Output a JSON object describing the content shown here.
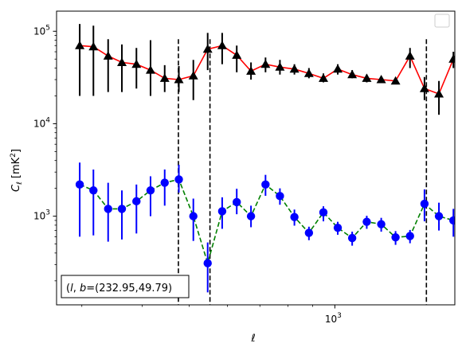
{
  "chart_data": {
    "type": "scatter",
    "title": "",
    "xlabel": "ℓ",
    "ylabel": "C_ℓ [mK²]",
    "xscale": "log",
    "yscale": "log",
    "xlim": [
      266,
      1770
    ],
    "ylim": [
      110,
      165000
    ],
    "grid": false,
    "legend": "top-right (empty)",
    "xticks": [
      {
        "value": 1000,
        "label": "10",
        "exp": "3"
      }
    ],
    "yticks": [
      {
        "value": 1000,
        "label": "10",
        "exp": "3"
      },
      {
        "value": 10000,
        "label": "10",
        "exp": "4"
      },
      {
        "value": 100000,
        "label": "10",
        "exp": "5"
      }
    ],
    "vlines": [
      475,
      552,
      1546
    ],
    "annotation": "(l, b)=(232.95,49.79)",
    "annotation_parts": {
      "l": "l",
      "b": "b",
      "sep": ", ",
      "prefix": "(",
      "close": ")",
      "eq": "=(232.95,49.79)"
    },
    "series": [
      {
        "marker": "triangle",
        "marker_color": "#000000",
        "line_color": "#ff0000",
        "line_style": "solid",
        "x": [
          297,
          317,
          340,
          363,
          389,
          416,
          445,
          476,
          510,
          546,
          585,
          627,
          671,
          719,
          770,
          825,
          884,
          947,
          1014,
          1086,
          1164,
          1247,
          1335,
          1430,
          1532,
          1641,
          1758
        ],
        "y": [
          70000,
          68000,
          54000,
          46000,
          44000,
          38000,
          31000,
          30000,
          33000,
          64000,
          70000,
          55000,
          37000,
          44000,
          41000,
          39000,
          35000,
          31000,
          39000,
          34000,
          31000,
          30000,
          29000,
          54000,
          24000,
          21000,
          50000
        ],
        "err_low": [
          20000,
          20000,
          22000,
          22000,
          24000,
          20000,
          22000,
          22000,
          18000,
          38000,
          44000,
          36000,
          30000,
          36000,
          34000,
          34000,
          31000,
          28000,
          34000,
          31000,
          28000,
          28000,
          27000,
          40000,
          18000,
          12500,
          40000
        ],
        "err_high": [
          120000,
          115000,
          82000,
          72000,
          66000,
          80000,
          43000,
          42000,
          49000,
          96000,
          96000,
          70000,
          46000,
          52000,
          49000,
          44000,
          40000,
          35000,
          44000,
          38000,
          34000,
          32000,
          31000,
          66000,
          32000,
          29000,
          60000
        ]
      },
      {
        "marker": "circle",
        "marker_color": "#0000ff",
        "line_color": "#008000",
        "line_style": "dashed",
        "x": [
          297,
          317,
          340,
          363,
          389,
          416,
          445,
          476,
          510,
          546,
          585,
          627,
          671,
          719,
          770,
          825,
          884,
          947,
          1014,
          1086,
          1164,
          1247,
          1335,
          1430,
          1532,
          1641,
          1758
        ],
        "y": [
          2200,
          1900,
          1200,
          1200,
          1450,
          1900,
          2300,
          2500,
          1000,
          310,
          1130,
          1420,
          1000,
          2200,
          1650,
          980,
          660,
          1100,
          750,
          580,
          870,
          820,
          590,
          610,
          1360,
          1000,
          900
        ],
        "err_low": [
          600,
          620,
          530,
          560,
          650,
          1000,
          1300,
          1800,
          540,
          150,
          730,
          1050,
          760,
          1660,
          1330,
          790,
          550,
          880,
          630,
          480,
          730,
          680,
          490,
          510,
          880,
          700,
          600
        ],
        "err_high": [
          3800,
          3200,
          2300,
          1900,
          2200,
          2700,
          3200,
          3600,
          1550,
          520,
          1600,
          1980,
          1300,
          2800,
          2000,
          1180,
          770,
          1280,
          870,
          680,
          1010,
          960,
          690,
          710,
          1950,
          1400,
          1200
        ]
      }
    ]
  }
}
